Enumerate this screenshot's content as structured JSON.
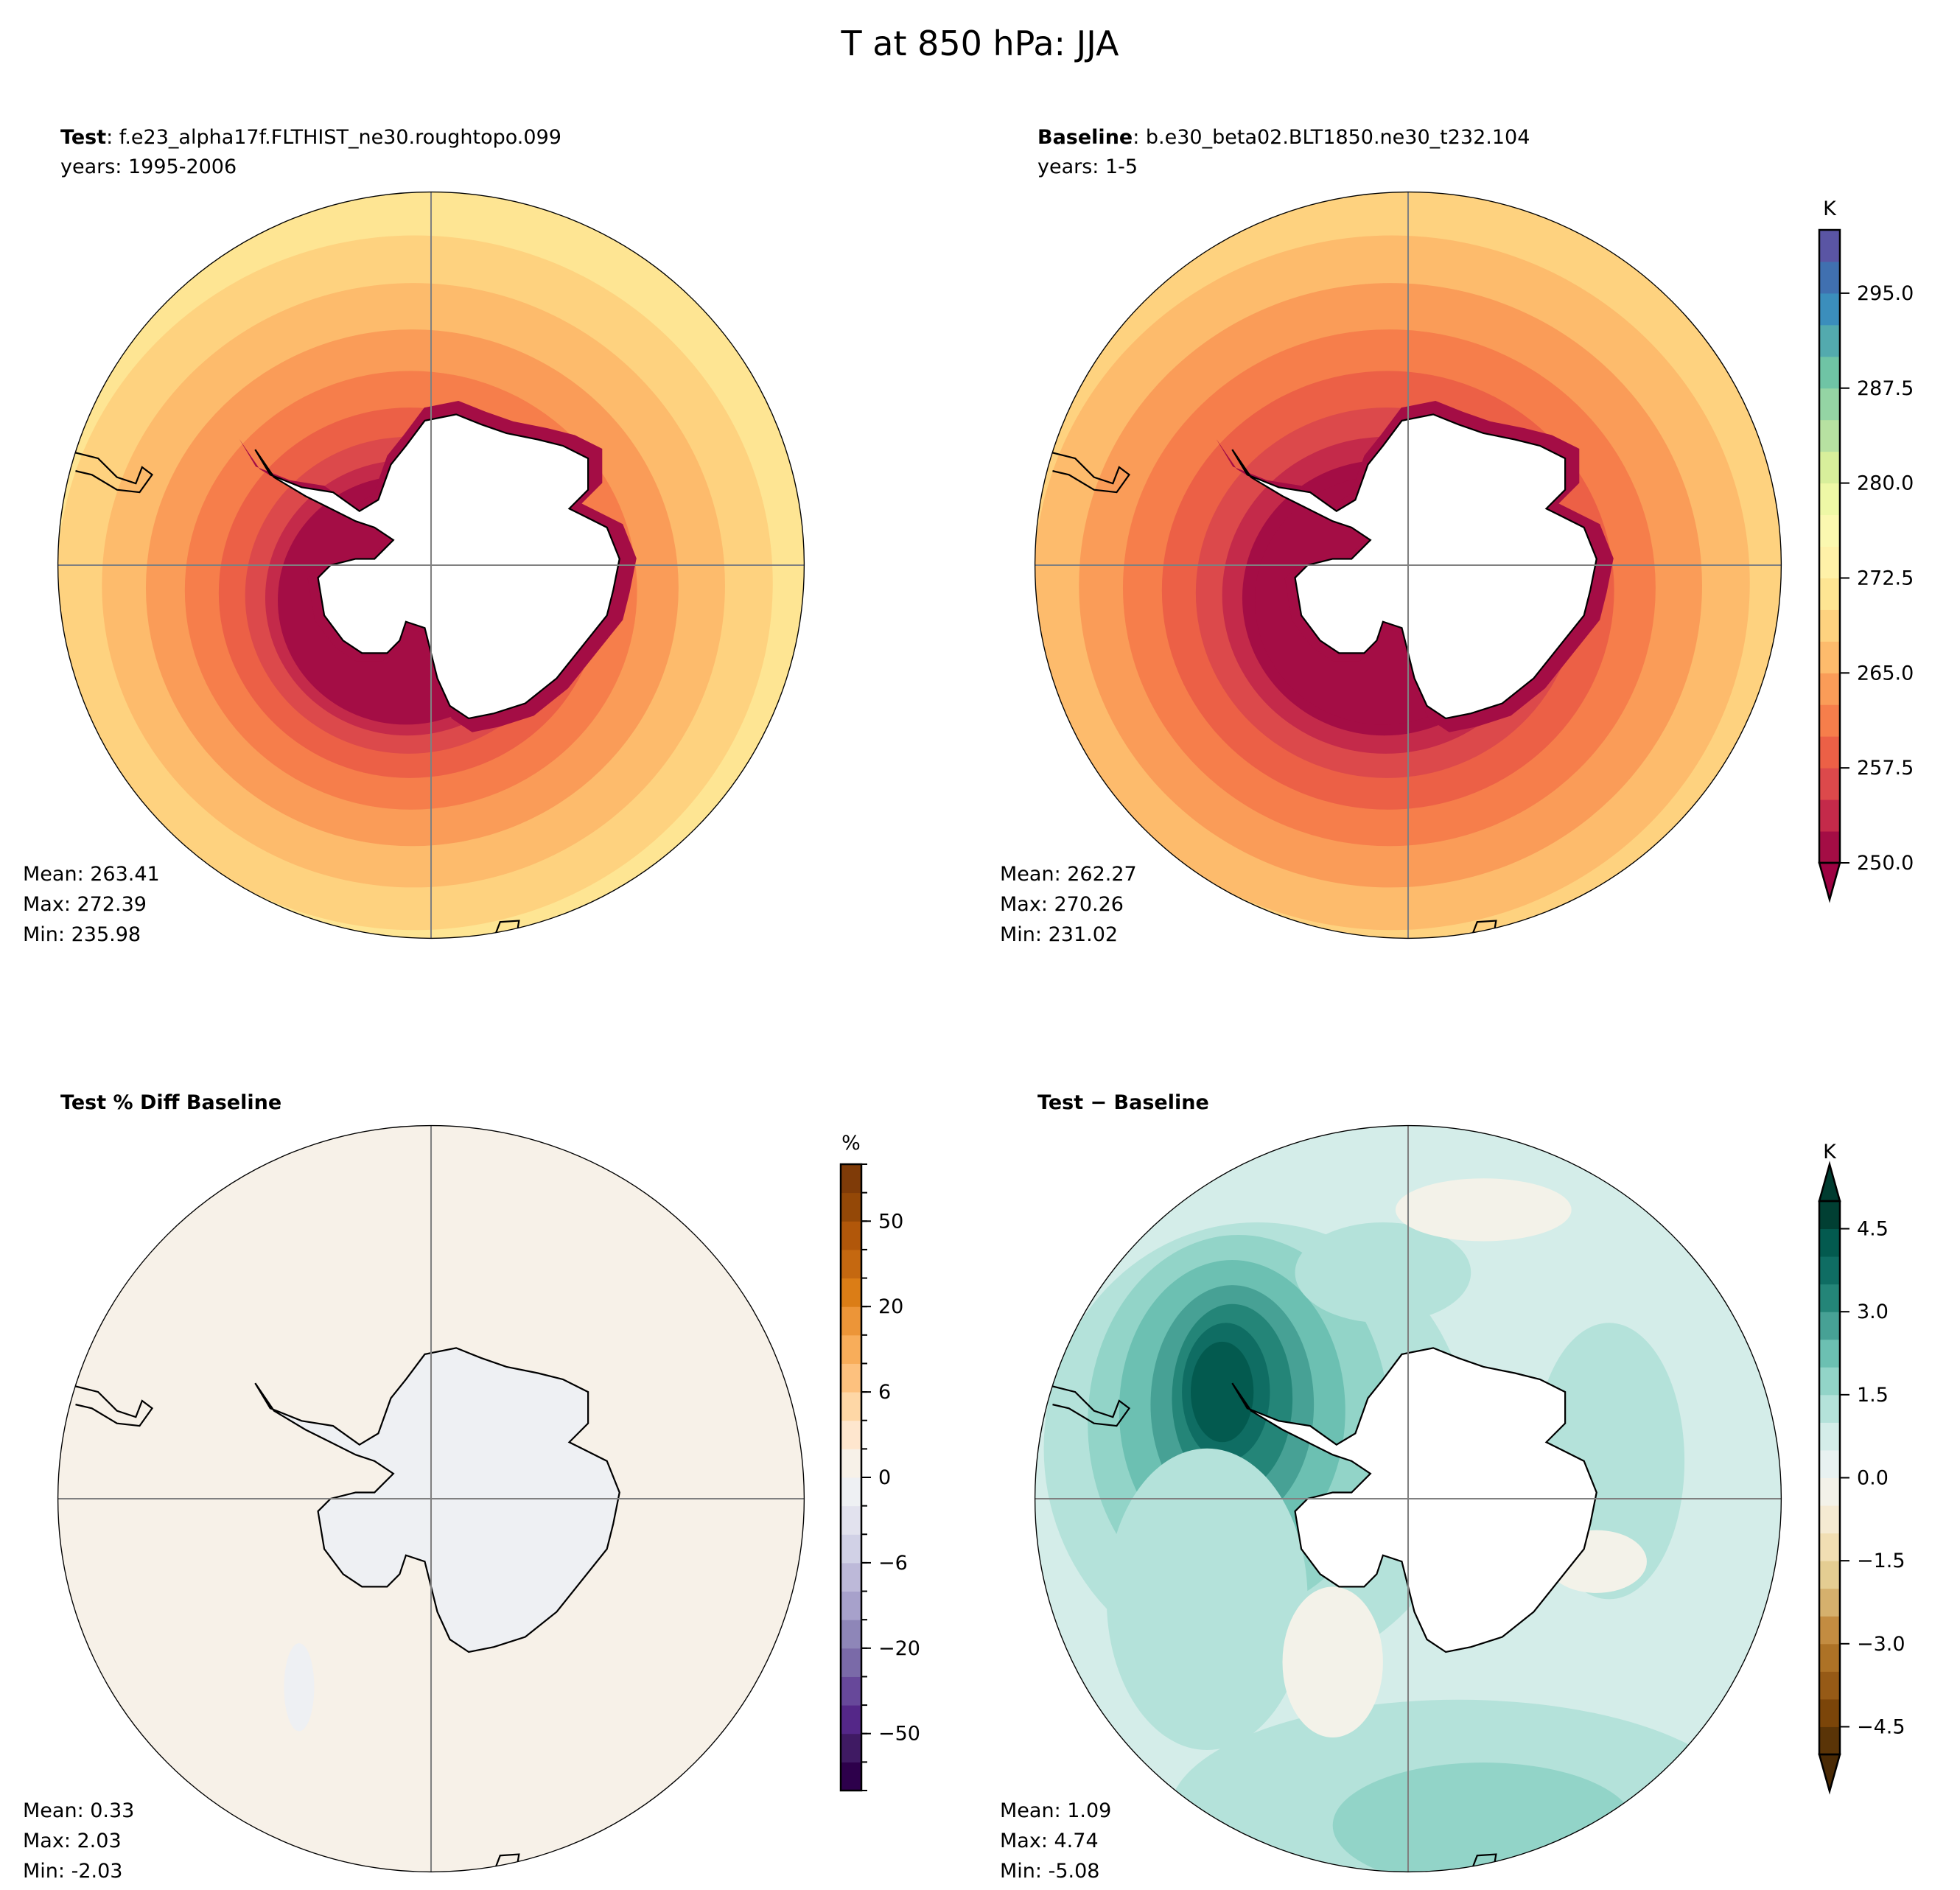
{
  "title": "T at 850 hPa: JJA",
  "chart_data": {
    "type": "heatmap",
    "title": "T at 850 hPa: JJA",
    "panels": [
      {
        "id": "test",
        "label_bold": "Test",
        "label_rest": ": f.e23_alpha17f.FLTHIST_ne30.roughtopo.099",
        "years": "years: 1995-2006",
        "stats": {
          "mean": "Mean: 263.41",
          "max": "Max: 272.39",
          "min": "Min: 235.98"
        },
        "colorbar": "abs",
        "ring_start": 8
      },
      {
        "id": "baseline",
        "label_bold": "Baseline",
        "label_rest": ": b.e30_beta02.BLT1850.ne30_t232.104",
        "years": "years: 1-5",
        "stats": {
          "mean": "Mean: 262.27",
          "max": "Max: 270.26",
          "min": "Min: 231.02"
        },
        "colorbar": "abs",
        "ring_start": 7
      },
      {
        "id": "pctdiff",
        "label_bold": "Test % Diff Baseline",
        "label_rest": "",
        "years": "",
        "stats": {
          "mean": "Mean:  0.33",
          "max": "Max:  2.03",
          "min": "Min: -2.03"
        },
        "colorbar": "pct"
      },
      {
        "id": "diff",
        "label_bold": "Test − Baseline",
        "label_rest": "",
        "years": "",
        "stats": {
          "mean": "Mean:  1.09",
          "max": "Max:  4.74",
          "min": "Min: -5.08"
        },
        "colorbar": "diff"
      }
    ],
    "colorbars": {
      "abs": {
        "unit": "K",
        "levels_min": 250,
        "levels_max": 300,
        "step": 2.5,
        "extend": "min",
        "ticks": [
          "250.0",
          "257.5",
          "265.0",
          "272.5",
          "280.0",
          "287.5",
          "295.0"
        ],
        "tick_values": [
          250,
          257.5,
          265,
          272.5,
          280,
          287.5,
          295
        ],
        "colors": [
          "#a40d45",
          "#c42a4a",
          "#dc494b",
          "#ec6046",
          "#f67e4b",
          "#fa9c58",
          "#fdbb6c",
          "#fed27f",
          "#fee593",
          "#fff1a8",
          "#fbf8b0",
          "#eef8a6",
          "#d8ef9b",
          "#b7e1a1",
          "#94d4a4",
          "#6fc4a5",
          "#53aaae",
          "#3b8ebc",
          "#4070b0",
          "#5a55a4"
        ],
        "under_color": "#9e0142"
      },
      "pct": {
        "unit": "%",
        "extend": "neither",
        "ticks": [
          "−50",
          "−20",
          "−6",
          "0",
          "6",
          "20",
          "50"
        ],
        "tick_boundary_index": [
          2,
          5,
          8,
          11,
          14,
          17,
          20
        ],
        "colors": [
          "#2d004b",
          "#3f1a63",
          "#542788",
          "#67489a",
          "#7a6aa8",
          "#8e86b8",
          "#a7a1cb",
          "#bdb9d9",
          "#d1d1e6",
          "#e2e2ee",
          "#eef0f3",
          "#f7f1e8",
          "#fee6ce",
          "#fed7a6",
          "#fdc17e",
          "#f8ad5a",
          "#ec9538",
          "#db7d16",
          "#c56810",
          "#b1570a",
          "#944807",
          "#7f3b08"
        ]
      },
      "diff": {
        "unit": "K",
        "levels_min": -5,
        "levels_max": 5,
        "step": 0.5,
        "extend": "both",
        "ticks": [
          "−4.5",
          "−3.0",
          "−1.5",
          "0.0",
          "1.5",
          "3.0",
          "4.5"
        ],
        "tick_values": [
          -4.5,
          -3,
          -1.5,
          0,
          1.5,
          3,
          4.5
        ],
        "colors": [
          "#5a3407",
          "#7b4509",
          "#965a16",
          "#ad7226",
          "#c38c41",
          "#d5b06d",
          "#e4cd92",
          "#f1deb3",
          "#f5ead2",
          "#f3f2e9",
          "#e8f2f1",
          "#d4ede9",
          "#b4e2da",
          "#92d4c8",
          "#6cc0b2",
          "#47a195",
          "#248578",
          "#0f6d63",
          "#035a4f",
          "#013f33"
        ],
        "under_color": "#4a2a05",
        "over_color": "#003c30"
      }
    }
  }
}
